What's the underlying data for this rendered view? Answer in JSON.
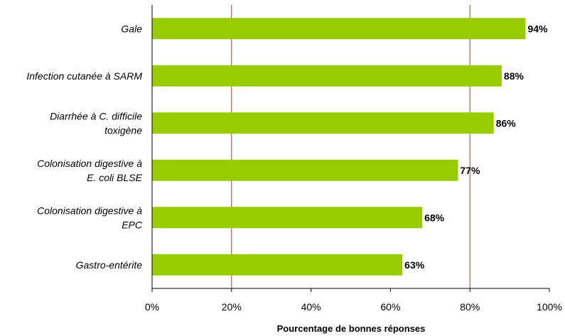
{
  "chart_data": {
    "type": "bar",
    "orientation": "horizontal",
    "categories": [
      [
        "Gale"
      ],
      [
        "Infection cutanée à SARM"
      ],
      [
        "Diarrhée à C. difficile",
        "toxigène"
      ],
      [
        "Colonisation digestive à",
        "E. coli BLSE"
      ],
      [
        "Colonisation digestive à",
        "EPC"
      ],
      [
        "Gastro-entérite"
      ]
    ],
    "values": [
      94,
      88,
      86,
      77,
      68,
      63
    ],
    "data_labels": [
      "94%",
      "88%",
      "86%",
      "77%",
      "68%",
      "63%"
    ],
    "xlabel": "Pourcentage de bonnes réponses",
    "xlim": [
      0,
      100
    ],
    "xticks": [
      0,
      20,
      40,
      60,
      80,
      100
    ],
    "xtick_labels": [
      "0%",
      "20%",
      "40%",
      "60%",
      "80%",
      "100%"
    ],
    "reference_lines": [
      20,
      80
    ],
    "grid": false,
    "legend": "none",
    "colors": {
      "bar": "#99cc00",
      "reference_line": "#cc3300",
      "axis": "#000000"
    }
  }
}
